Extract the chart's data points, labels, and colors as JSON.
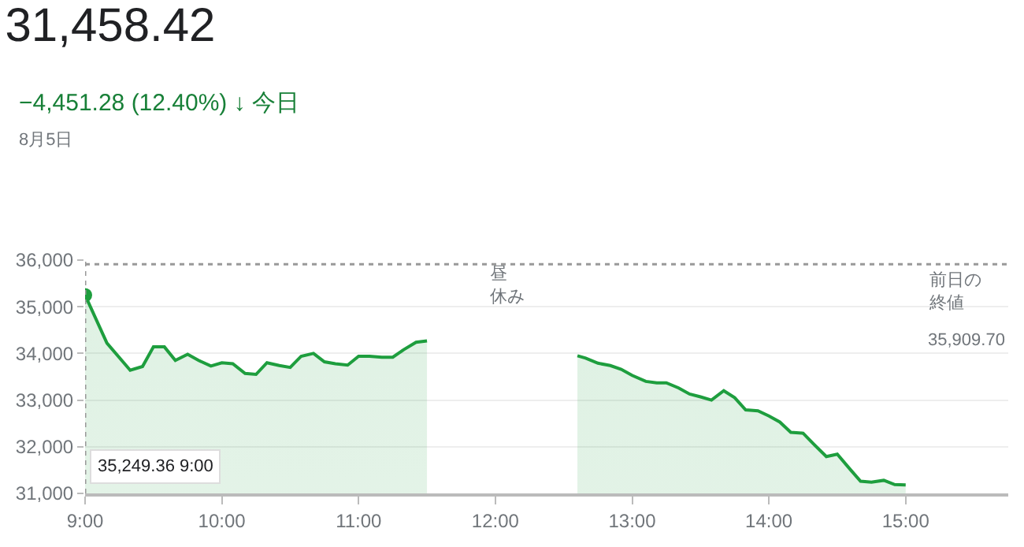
{
  "chart_data": {
    "type": "area",
    "title": "31,458.42",
    "subtitle": "−4,451.28 (12.40%) ↓ 今日",
    "annotations": [
      "8月5日",
      "昼休み",
      "35,249.36 9:00",
      "35,909.70"
    ],
    "x": [
      9.0,
      9.16,
      9.33,
      9.42,
      9.5,
      9.58,
      9.66,
      9.75,
      9.83,
      9.92,
      10.0,
      10.08,
      10.17,
      10.25,
      10.33,
      10.42,
      10.5,
      10.58,
      10.67,
      10.75,
      10.83,
      10.92,
      11.0,
      11.08,
      11.17,
      11.25,
      11.33,
      11.42,
      11.5,
      12.0,
      12.6,
      12.66,
      12.75,
      12.84,
      12.92,
      13.0,
      13.1,
      13.18,
      13.25,
      13.34,
      13.42,
      13.5,
      13.58,
      13.67,
      13.75,
      13.83,
      13.92,
      14.0,
      14.08,
      14.16,
      14.25,
      14.33,
      14.42,
      14.5,
      14.59,
      14.67,
      14.75,
      14.84,
      14.92,
      15.0
    ],
    "series": [
      {
        "color": "#1e9e3e",
        "values": [
          35250,
          34220,
          33640,
          33720,
          34140,
          34140,
          33850,
          33980,
          33850,
          33730,
          33800,
          33780,
          33570,
          33550,
          33800,
          33740,
          33700,
          33940,
          34000,
          33820,
          33780,
          33750,
          33940,
          33940,
          33920,
          33920,
          34080,
          34240,
          34270,
          null,
          33950,
          33900,
          33790,
          33740,
          33660,
          33530,
          33400,
          33370,
          33370,
          33260,
          33130,
          33070,
          33000,
          33200,
          33050,
          32790,
          32770,
          32660,
          32530,
          32310,
          32290,
          32050,
          31790,
          31840,
          31530,
          31260,
          31240,
          31280,
          31190,
          31180
        ]
      }
    ],
    "xlim": [
      9,
      15.75
    ],
    "xticks": [
      {
        "value": 9,
        "label": "9:00"
      },
      {
        "value": 10,
        "label": "10:00"
      },
      {
        "value": 11,
        "label": "11:00"
      },
      {
        "value": 12,
        "label": "12:00"
      },
      {
        "value": 13,
        "label": "13:00"
      },
      {
        "value": 14,
        "label": "14:00"
      },
      {
        "value": 15,
        "label": "15:00"
      }
    ],
    "ylim": [
      31000,
      36000
    ],
    "yticks": [
      {
        "value": 31000,
        "label": "31,000"
      },
      {
        "value": 32000,
        "label": "32,000"
      },
      {
        "value": 33000,
        "label": "33,000"
      },
      {
        "value": 34000,
        "label": "34,000"
      },
      {
        "value": 35000,
        "label": "35,000"
      },
      {
        "value": 36000,
        "label": "36,000"
      }
    ],
    "grid": "y",
    "ref_lines": [
      {
        "axis": "y",
        "value": 35909.7,
        "label": "前日の終値",
        "color": "#999999",
        "line_style": "dotted"
      },
      {
        "axis": "x",
        "value": 9,
        "label": null,
        "color": "#999999",
        "line_style": "dotted"
      }
    ]
  }
}
